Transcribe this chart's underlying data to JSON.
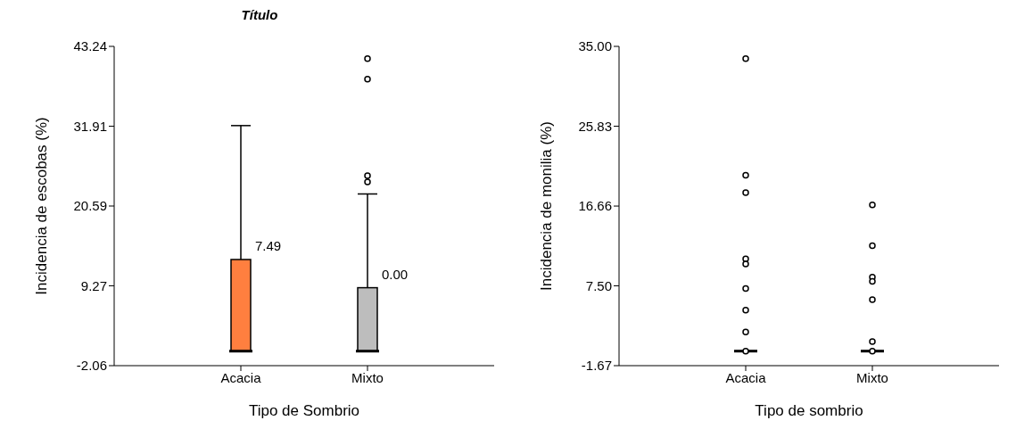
{
  "chart_data": [
    {
      "type": "box",
      "title": "Título",
      "xlabel": "Tipo de Sombrio",
      "ylabel": "Incidencia de escobas (%)",
      "categories": [
        "Acacia",
        "Mixto"
      ],
      "colors": [
        "#ff7f3f",
        "#bdbdbd"
      ],
      "boxes": [
        {
          "low": 0,
          "q1": 0,
          "median": 0,
          "q3": 13,
          "high": 32
        },
        {
          "low": 0,
          "q1": 0,
          "median": 0,
          "q3": 9,
          "high": 22.3,
          "outliers": [
            24.9,
            24.0,
            41.5,
            38.6
          ]
        }
      ],
      "ylim": [
        -2.06,
        43.24
      ],
      "yticks": [
        -2.06,
        9.27,
        20.59,
        31.91,
        43.24
      ],
      "annotations": [
        {
          "text": "7.49",
          "x": "Acacia",
          "y": 13
        },
        {
          "text": "0.00",
          "x": "Mixto",
          "y": 9
        }
      ]
    },
    {
      "type": "box",
      "xlabel": "Tipo de sombrio",
      "ylabel": "Incidencia de monilia (%)",
      "categories": [
        "Acacia",
        "Mixto"
      ],
      "boxes": [
        {
          "low": 0,
          "q1": 0,
          "median": 0,
          "q3": 0,
          "high": 0,
          "outliers": [
            33.6,
            20.2,
            18.2,
            10.6,
            10.0,
            7.2,
            4.7,
            2.2,
            0
          ]
        },
        {
          "low": 0,
          "q1": 0,
          "median": 0,
          "q3": 0,
          "high": 0,
          "outliers": [
            16.8,
            12.1,
            8.5,
            8.0,
            5.9,
            1.1,
            0
          ]
        }
      ],
      "ylim": [
        -1.67,
        35
      ],
      "yticks": [
        -1.67,
        {
          "value": 7.5,
          "label": "7.50"
        },
        16.66,
        25.83,
        {
          "value": 35,
          "label": "35.00"
        }
      ]
    }
  ]
}
